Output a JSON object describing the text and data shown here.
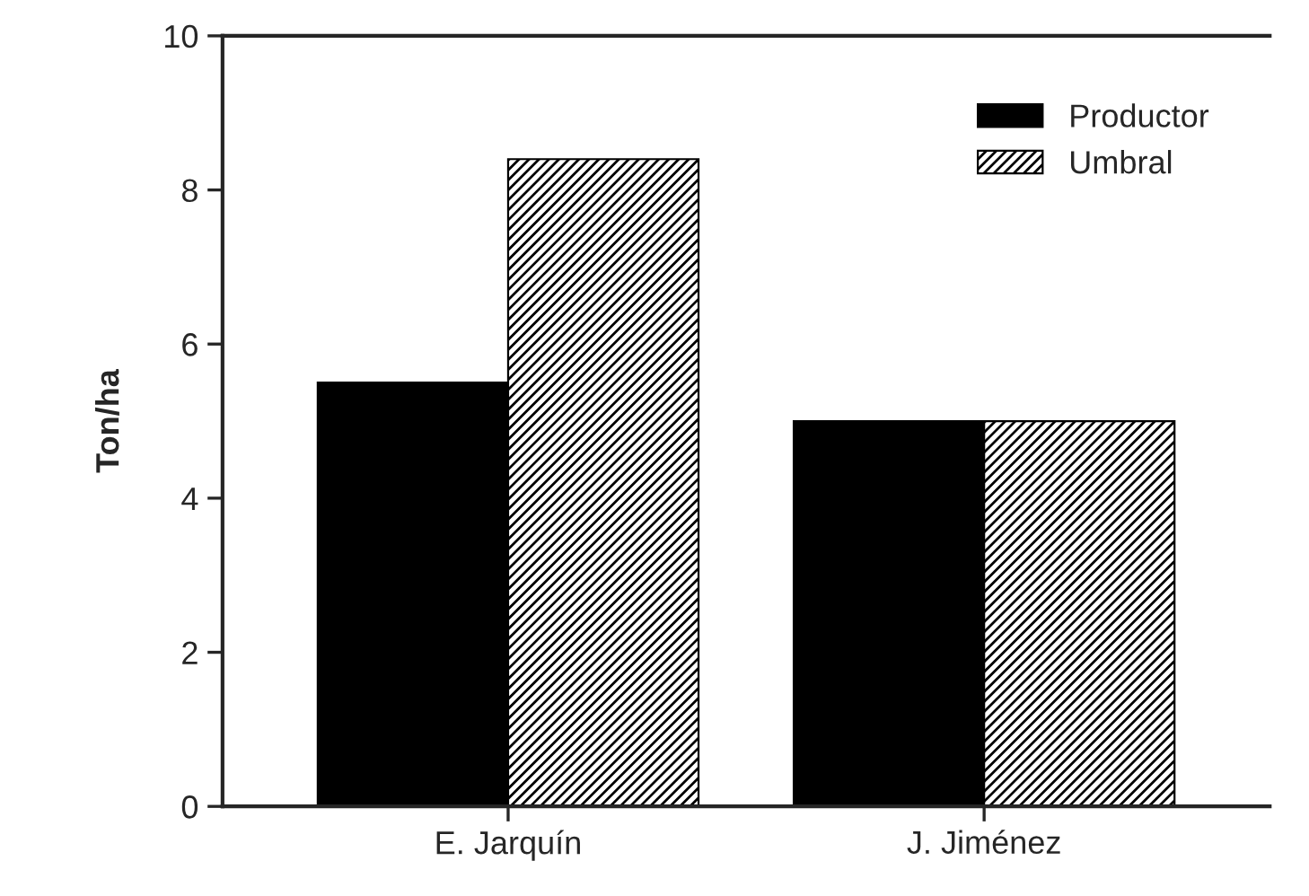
{
  "chart_data": {
    "type": "bar",
    "ylabel": "Ton/ha",
    "categories": [
      "E. Jarquín",
      "J. Jiménez"
    ],
    "series": [
      {
        "name": "Productor",
        "color": "#000000",
        "values": [
          5.5,
          5.0
        ]
      },
      {
        "name": "Umbral",
        "color": "#000000",
        "values": [
          8.4,
          5.0
        ]
      }
    ],
    "ylim": [
      0,
      10
    ],
    "yticks": [
      0,
      2,
      4,
      6,
      8,
      10
    ],
    "legend": "top right",
    "grid": false
  }
}
